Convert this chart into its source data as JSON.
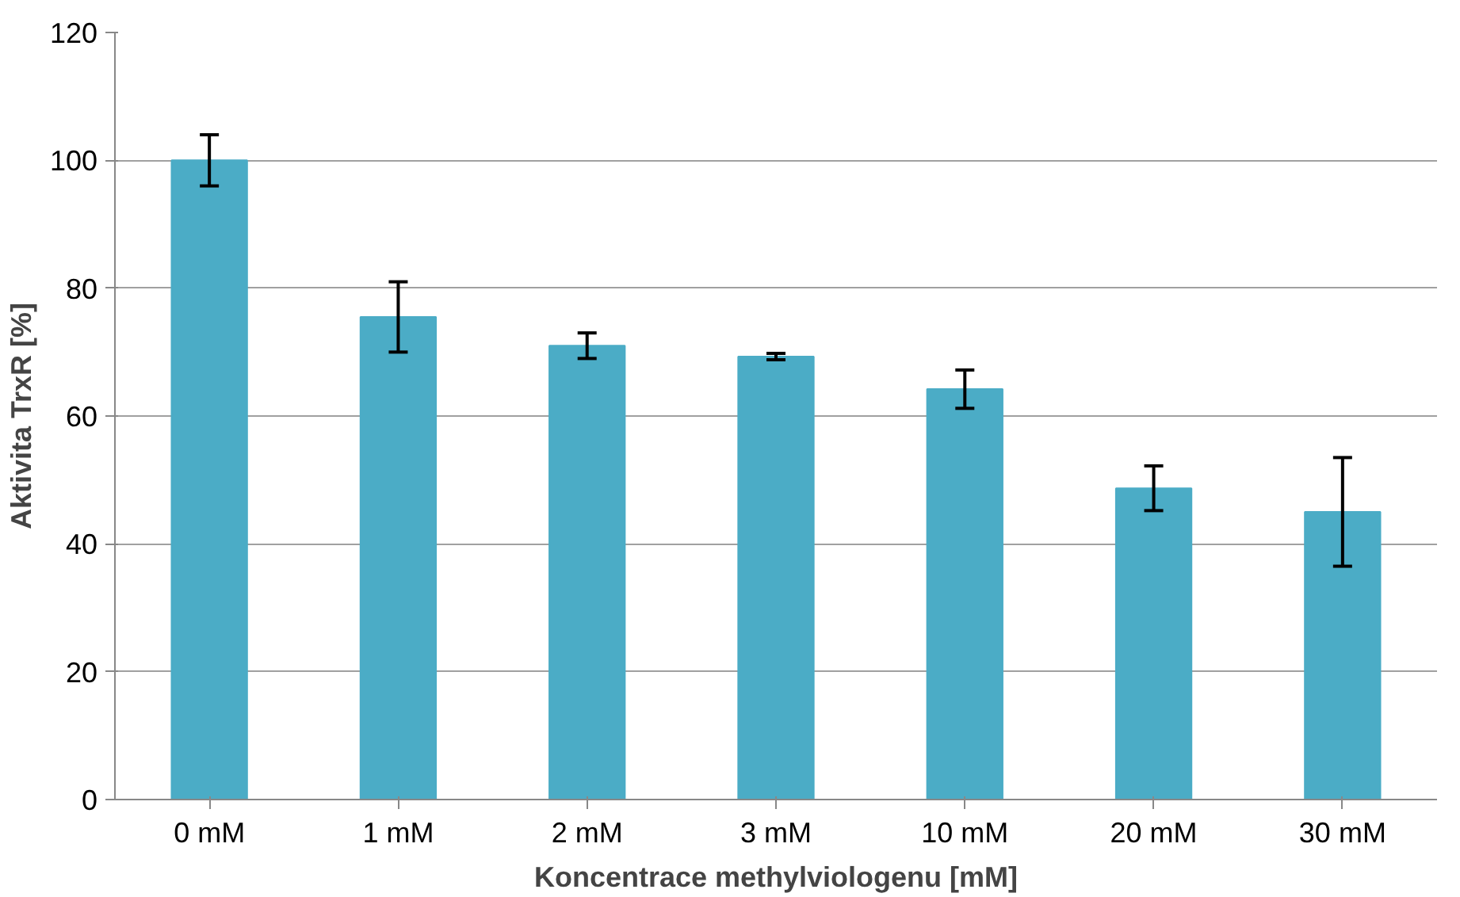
{
  "chart_data": {
    "type": "bar",
    "xlabel": "Koncentrace methylviologenu [mM]",
    "ylabel": "Aktivita TrxR [%]",
    "categories": [
      "0 mM",
      "1 mM",
      "2 mM",
      "3 mM",
      "10 mM",
      "20 mM",
      "30 mM"
    ],
    "values": [
      100,
      75.5,
      71,
      69.3,
      64.2,
      48.7,
      45
    ],
    "errors": [
      4,
      5.5,
      2,
      0.5,
      3,
      3.5,
      8.5
    ],
    "color": "#4bacc6",
    "ylim": [
      0,
      120
    ],
    "yticks": [
      0,
      20,
      40,
      60,
      80,
      100,
      120
    ],
    "grid": "y"
  }
}
